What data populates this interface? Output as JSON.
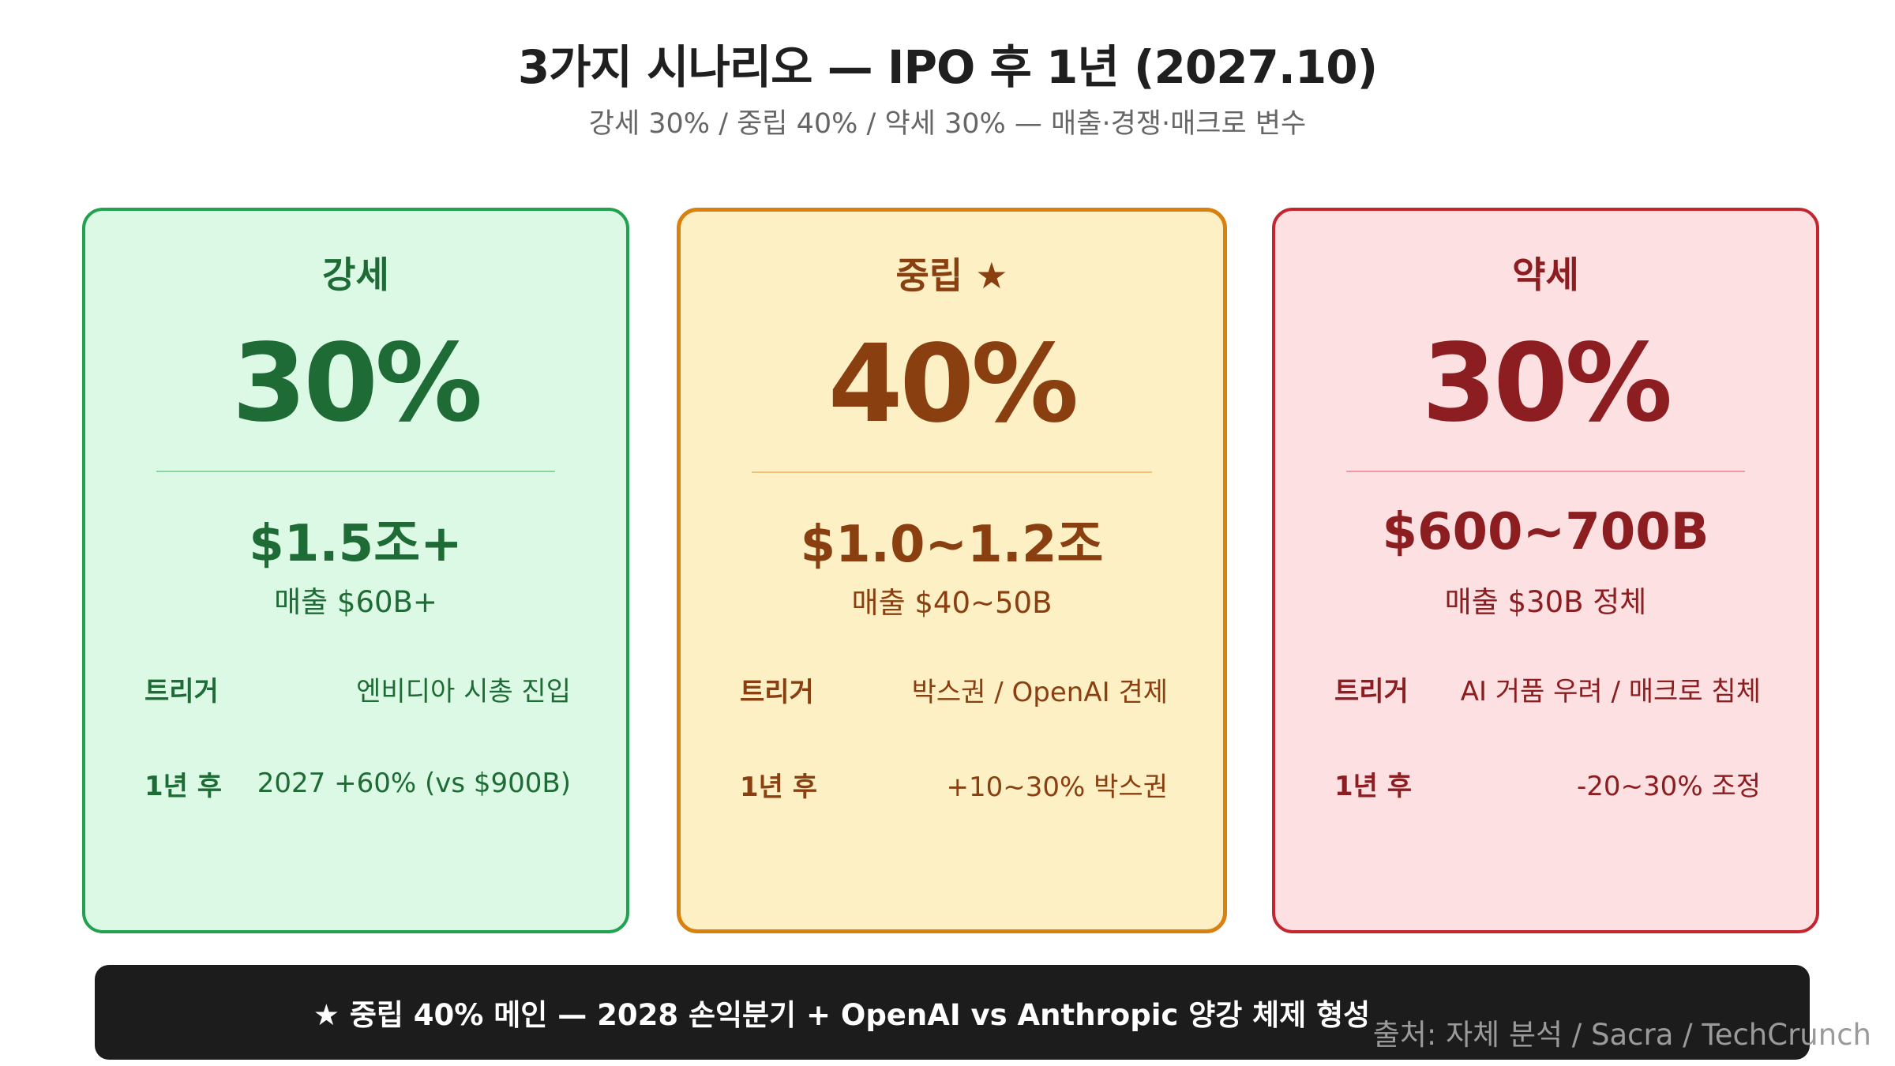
{
  "header": {
    "title": "3가지 시나리오 — IPO 후 1년 (2027.10)",
    "subtitle": "강세 30% / 중립 40% / 약세 30% — 매출·경쟁·매크로 변수"
  },
  "scenarios": [
    {
      "label": "강세",
      "probability": "30%",
      "valuation": "$1.5조+",
      "revenue": "매출 $60B+",
      "rows": [
        {
          "key": "트리거",
          "value": "엔비디아 시총 진입"
        },
        {
          "key": "1년 후",
          "value": "2027 +60% (vs $900B)"
        }
      ],
      "colors": {
        "bg": "#dcf9e6",
        "border": "#22a150",
        "text": "#1e6b35"
      }
    },
    {
      "label": "중립 ★",
      "probability": "40%",
      "valuation": "$1.0~1.2조",
      "revenue": "매출 $40~50B",
      "rows": [
        {
          "key": "트리거",
          "value": "박스권 / OpenAI 견제"
        },
        {
          "key": "1년 후",
          "value": "+10~30% 박스권"
        }
      ],
      "colors": {
        "bg": "#fdf0c4",
        "border": "#d9800f",
        "text": "#8a3f10"
      }
    },
    {
      "label": "약세",
      "probability": "30%",
      "valuation": "$600~700B",
      "revenue": "매출 $30B 정체",
      "rows": [
        {
          "key": "트리거",
          "value": "AI 거품 우려 / 매크로 침체"
        },
        {
          "key": "1년 후",
          "value": "-20~30% 조정"
        }
      ],
      "colors": {
        "bg": "#fde0e1",
        "border": "#c42630",
        "text": "#8c1d20"
      }
    }
  ],
  "banner": {
    "text": "★ 중립 40% 메인 — 2028 손익분기 + OpenAI vs Anthropic 양강 체제 형성"
  },
  "source": "출처: 자체 분석 / Sacra / TechCrunch"
}
